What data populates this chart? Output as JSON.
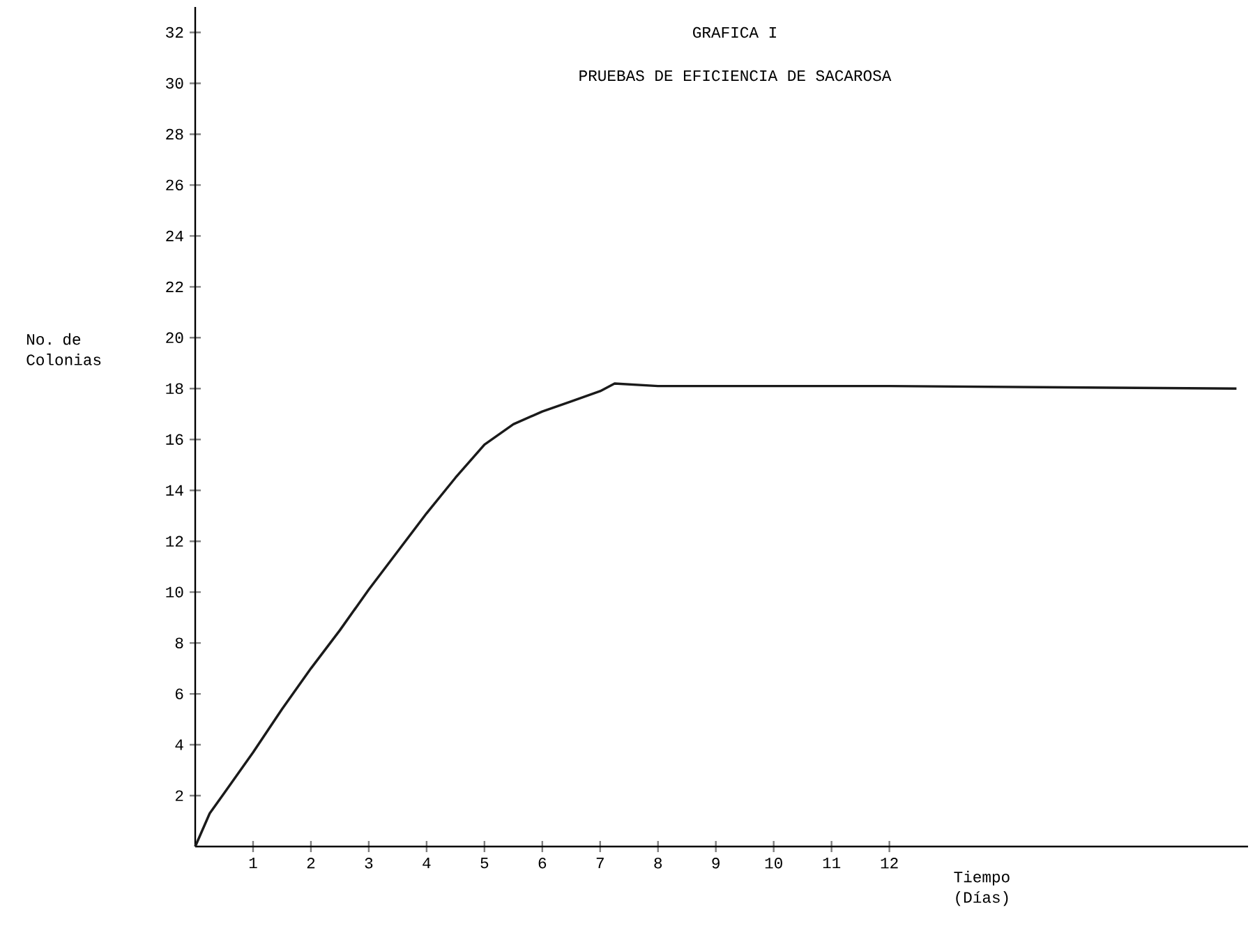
{
  "chart_data": {
    "type": "line",
    "title": "GRAFICA  I",
    "subtitle": "PRUEBAS DE EFICIENCIA DE SACAROSA",
    "xlabel": "Tiempo (Días)",
    "ylabel": "No. de Colonias",
    "x": [
      0,
      0.25,
      0.5,
      1,
      1.5,
      2,
      2.5,
      3,
      3.5,
      4,
      4.5,
      5,
      5.5,
      6,
      6.5,
      7,
      7.25,
      8,
      12,
      18
    ],
    "values": [
      0,
      1.3,
      2.1,
      3.7,
      5.4,
      7.0,
      8.5,
      10.1,
      11.6,
      13.1,
      14.5,
      15.8,
      16.6,
      17.1,
      17.5,
      17.9,
      18.2,
      18.1,
      18.1,
      18.0
    ],
    "color": "#1a1a1a",
    "xlim": [
      0,
      18.2
    ],
    "ylim": [
      0,
      33
    ],
    "xticks": [
      1,
      2,
      3,
      4,
      5,
      6,
      7,
      8,
      9,
      10,
      11,
      12
    ],
    "yticks": [
      2,
      4,
      6,
      8,
      10,
      12,
      14,
      16,
      18,
      20,
      22,
      24,
      26,
      28,
      30,
      32
    ]
  }
}
